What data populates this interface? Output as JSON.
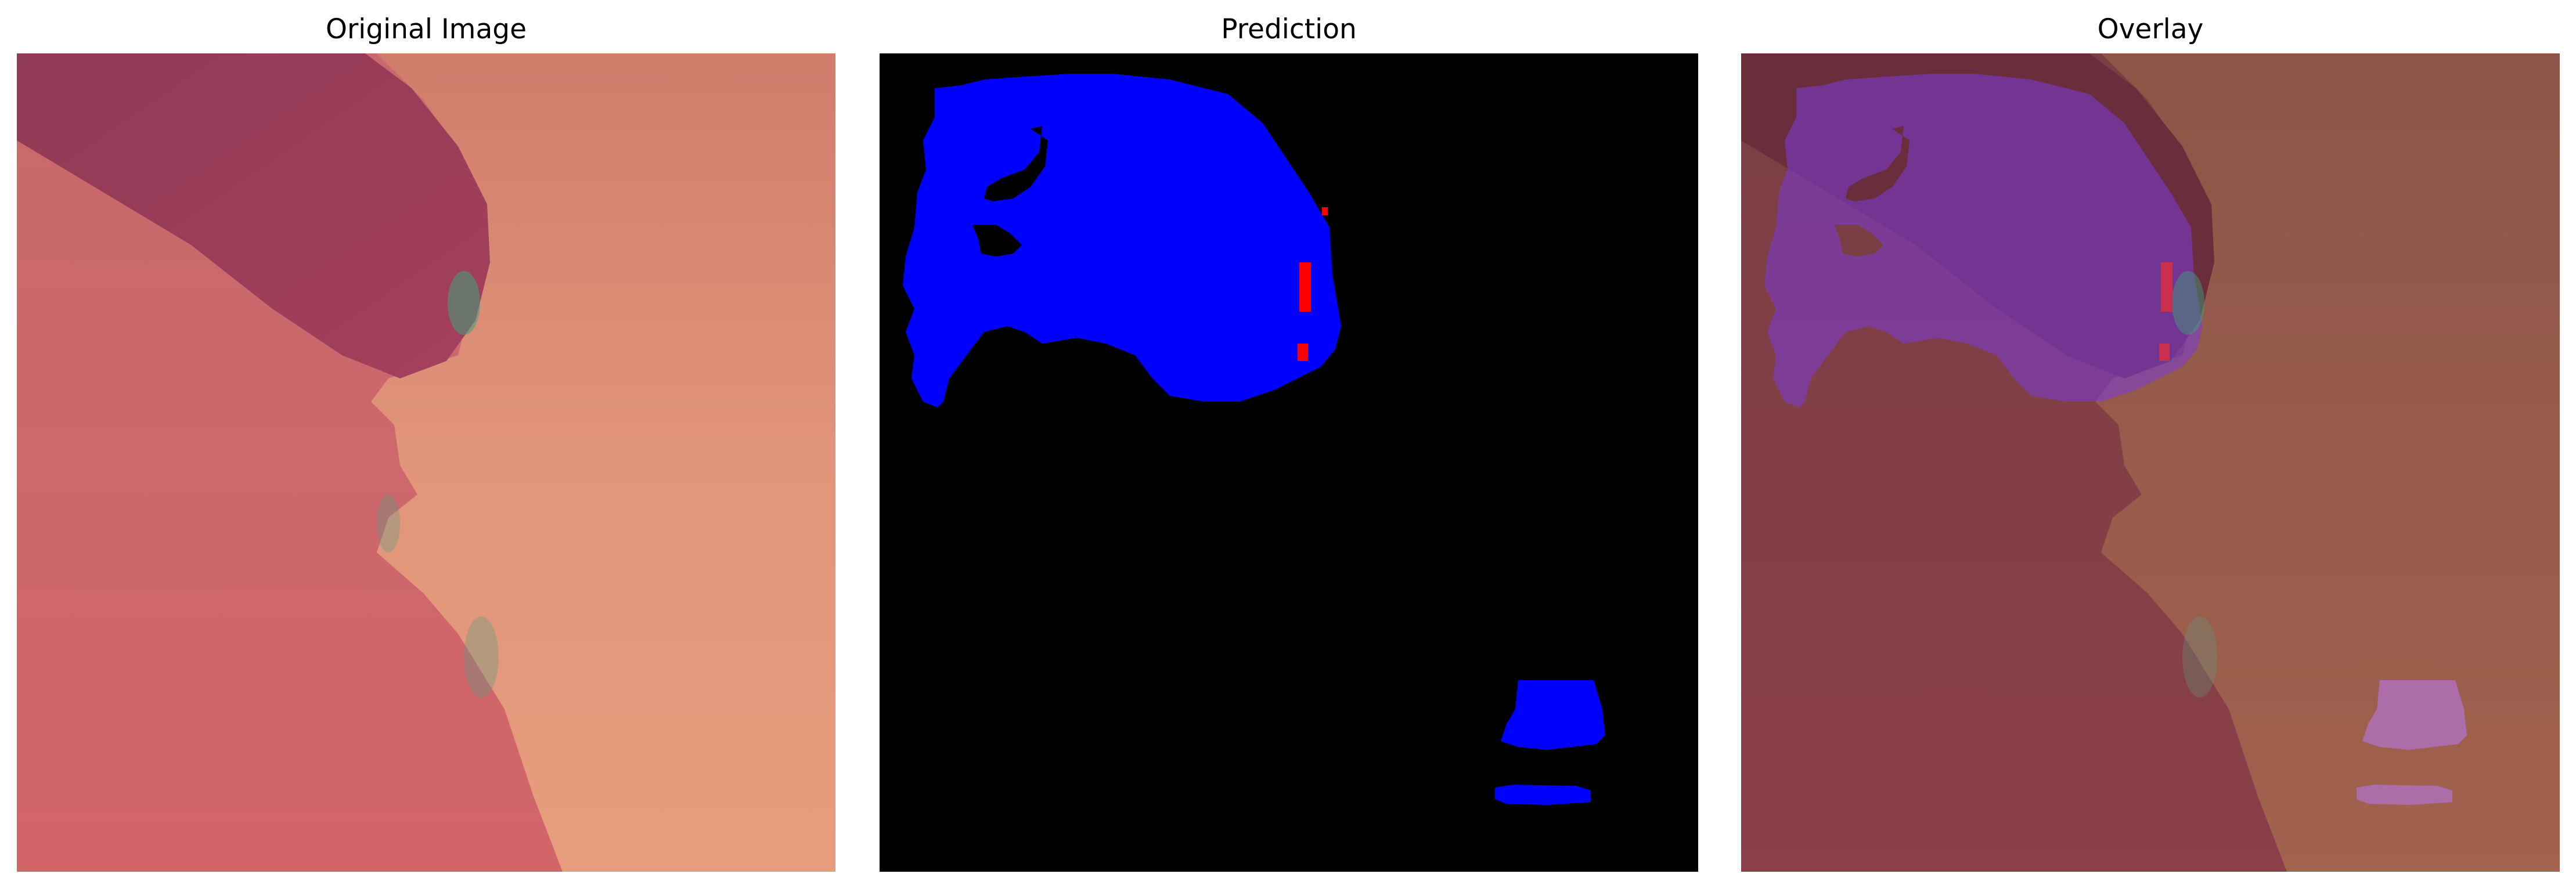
{
  "panels": [
    {
      "title": "Original Image"
    },
    {
      "title": "Prediction"
    },
    {
      "title": "Overlay"
    }
  ],
  "colors": {
    "background": "#ffffff",
    "prediction_background": "#000000",
    "prediction_class_a": "#0000ff",
    "prediction_class_b": "#ff0000",
    "substrate_light": "#e59a7a",
    "substrate_dark": "#c85a66",
    "flake_dark": "#9a3e5a",
    "edge_green": "#3fa37a"
  }
}
